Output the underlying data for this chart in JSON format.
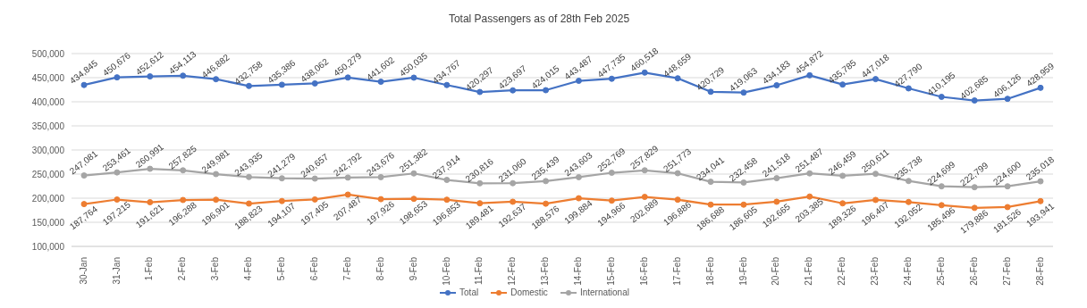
{
  "chart_data": {
    "type": "line",
    "title": "Total Passengers as of 28th Feb 2025",
    "categories": [
      "30-Jan",
      "31-Jan",
      "1-Feb",
      "2-Feb",
      "3-Feb",
      "4-Feb",
      "5-Feb",
      "6-Feb",
      "7-Feb",
      "8-Feb",
      "9-Feb",
      "10-Feb",
      "11-Feb",
      "12-Feb",
      "13-Feb",
      "14-Feb",
      "15-Feb",
      "16-Feb",
      "17-Feb",
      "18-Feb",
      "19-Feb",
      "20-Feb",
      "21-Feb",
      "22-Feb",
      "23-Feb",
      "24-Feb",
      "25-Feb",
      "26-Feb",
      "27-Feb",
      "28-Feb"
    ],
    "series": [
      {
        "name": "Total",
        "color": "#4472c4",
        "values": [
          434845,
          450676,
          452612,
          454113,
          446882,
          432758,
          435386,
          438062,
          450279,
          441602,
          450035,
          434767,
          420297,
          423697,
          424015,
          443487,
          447735,
          460518,
          448659,
          420729,
          419063,
          434183,
          454872,
          435785,
          447018,
          427790,
          410195,
          402685,
          406126,
          428959
        ],
        "value_labels": [
          "434,845",
          "450,676",
          "452,612",
          "454,113",
          "446,882",
          "432,758",
          "435,386",
          "438,062",
          "450,279",
          "441,602",
          "450,035",
          "434,767",
          "420,297",
          "423,697",
          "424,015",
          "443,487",
          "447,735",
          "460,518",
          "448,659",
          "420,729",
          "419,063",
          "434,183",
          "454,872",
          "435,785",
          "447,018",
          "427,790",
          "410,195",
          "402,685",
          "406,126",
          "428,959"
        ]
      },
      {
        "name": "Domestic",
        "color": "#ed7d31",
        "values": [
          187764,
          197215,
          191621,
          196288,
          196901,
          188823,
          194107,
          197405,
          207487,
          197926,
          198653,
          196853,
          189481,
          192637,
          188576,
          199884,
          194966,
          202689,
          196886,
          186688,
          186605,
          192665,
          203385,
          189326,
          196407,
          192052,
          185496,
          179886,
          181526,
          193941
        ],
        "value_labels": [
          "187,764",
          "197,215",
          "191,621",
          "196,288",
          "196,901",
          "188,823",
          "194,107",
          "197,405",
          "207,487",
          "197,926",
          "198,653",
          "196,853",
          "189,481",
          "192,637",
          "188,576",
          "199,884",
          "194,966",
          "202,689",
          "196,886",
          "186,688",
          "186,605",
          "192,665",
          "203,385",
          "189,326",
          "196,407",
          "192,052",
          "185,496",
          "179,886",
          "181,526",
          "193,941"
        ]
      },
      {
        "name": "International",
        "color": "#a5a5a5",
        "values": [
          247081,
          253461,
          260991,
          257825,
          249981,
          243935,
          241279,
          240657,
          242792,
          243676,
          251382,
          237914,
          230816,
          231060,
          235439,
          243603,
          252769,
          257829,
          251773,
          234041,
          232458,
          241518,
          251487,
          246459,
          250611,
          235738,
          224699,
          222799,
          224600,
          235018
        ],
        "value_labels": [
          "247,081",
          "253,461",
          "260,991",
          "257,825",
          "249,981",
          "243,935",
          "241,279",
          "240,657",
          "242,792",
          "243,676",
          "251,382",
          "237,914",
          "230,816",
          "231,060",
          "235,439",
          "243,603",
          "252,769",
          "257,829",
          "251,773",
          "234,041",
          "232,458",
          "241,518",
          "251,487",
          "246,459",
          "250,611",
          "235,738",
          "224,699",
          "222,799",
          "224,600",
          "235,018"
        ]
      }
    ],
    "ylim": [
      100000,
      500000
    ],
    "yticks": [
      {
        "value": 100000,
        "label": "100,000"
      },
      {
        "value": 150000,
        "label": "150,000"
      },
      {
        "value": 200000,
        "label": "200,000"
      },
      {
        "value": 250000,
        "label": "250,000"
      },
      {
        "value": 300000,
        "label": "300,000"
      },
      {
        "value": 350000,
        "label": "350,000"
      },
      {
        "value": 400000,
        "label": "400,000"
      },
      {
        "value": 450000,
        "label": "450,000"
      },
      {
        "value": 500000,
        "label": "500,000"
      }
    ],
    "grid": "y",
    "legend": "bottom",
    "marker": "circle",
    "line_style": "solid"
  }
}
